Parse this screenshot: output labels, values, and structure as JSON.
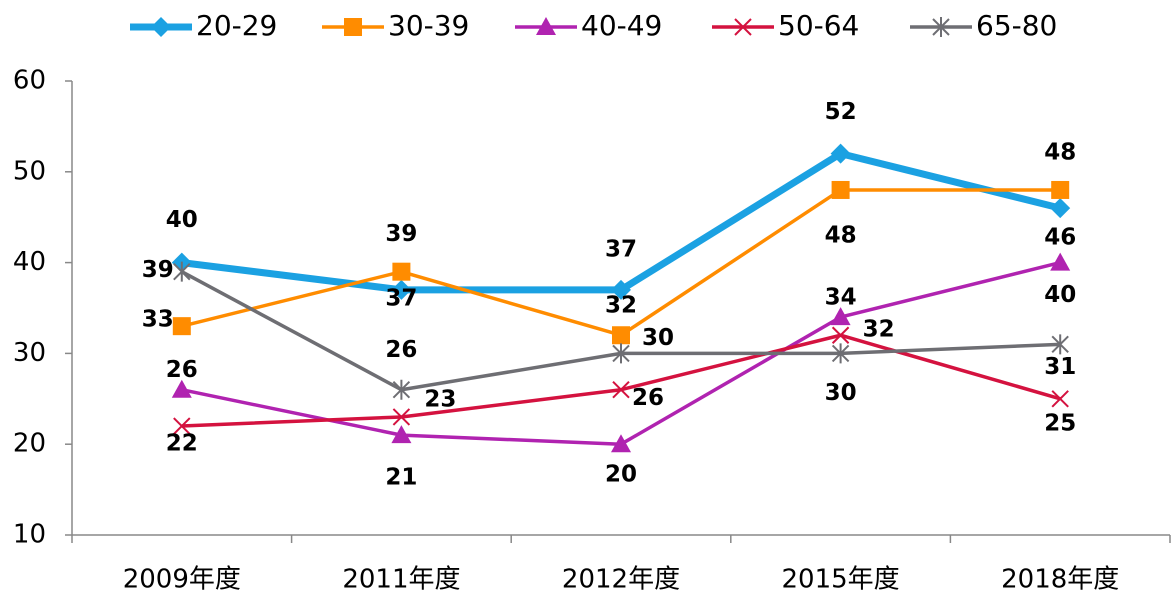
{
  "chart_data": {
    "type": "line",
    "categories": [
      "2009年度",
      "2011年度",
      "2012年度",
      "2015年度",
      "2018年度"
    ],
    "series": [
      {
        "name": "20-29",
        "color": "#1ba1e2",
        "marker": "diamond",
        "values": [
          40,
          37,
          37,
          52,
          46
        ]
      },
      {
        "name": "30-39",
        "color": "#ff8c00",
        "marker": "square",
        "values": [
          33,
          39,
          32,
          48,
          48
        ]
      },
      {
        "name": "40-49",
        "color": "#b023b0",
        "marker": "triangle",
        "values": [
          26,
          21,
          20,
          34,
          40
        ]
      },
      {
        "name": "50-64",
        "color": "#d4123f",
        "marker": "x",
        "values": [
          22,
          23,
          26,
          32,
          25
        ]
      },
      {
        "name": "65-80",
        "color": "#6e6e73",
        "marker": "asterisk",
        "values": [
          39,
          26,
          30,
          30,
          31
        ]
      }
    ],
    "ylim": [
      10,
      60
    ],
    "yticks": [
      10,
      20,
      30,
      40,
      50,
      60
    ],
    "legend": "top"
  }
}
